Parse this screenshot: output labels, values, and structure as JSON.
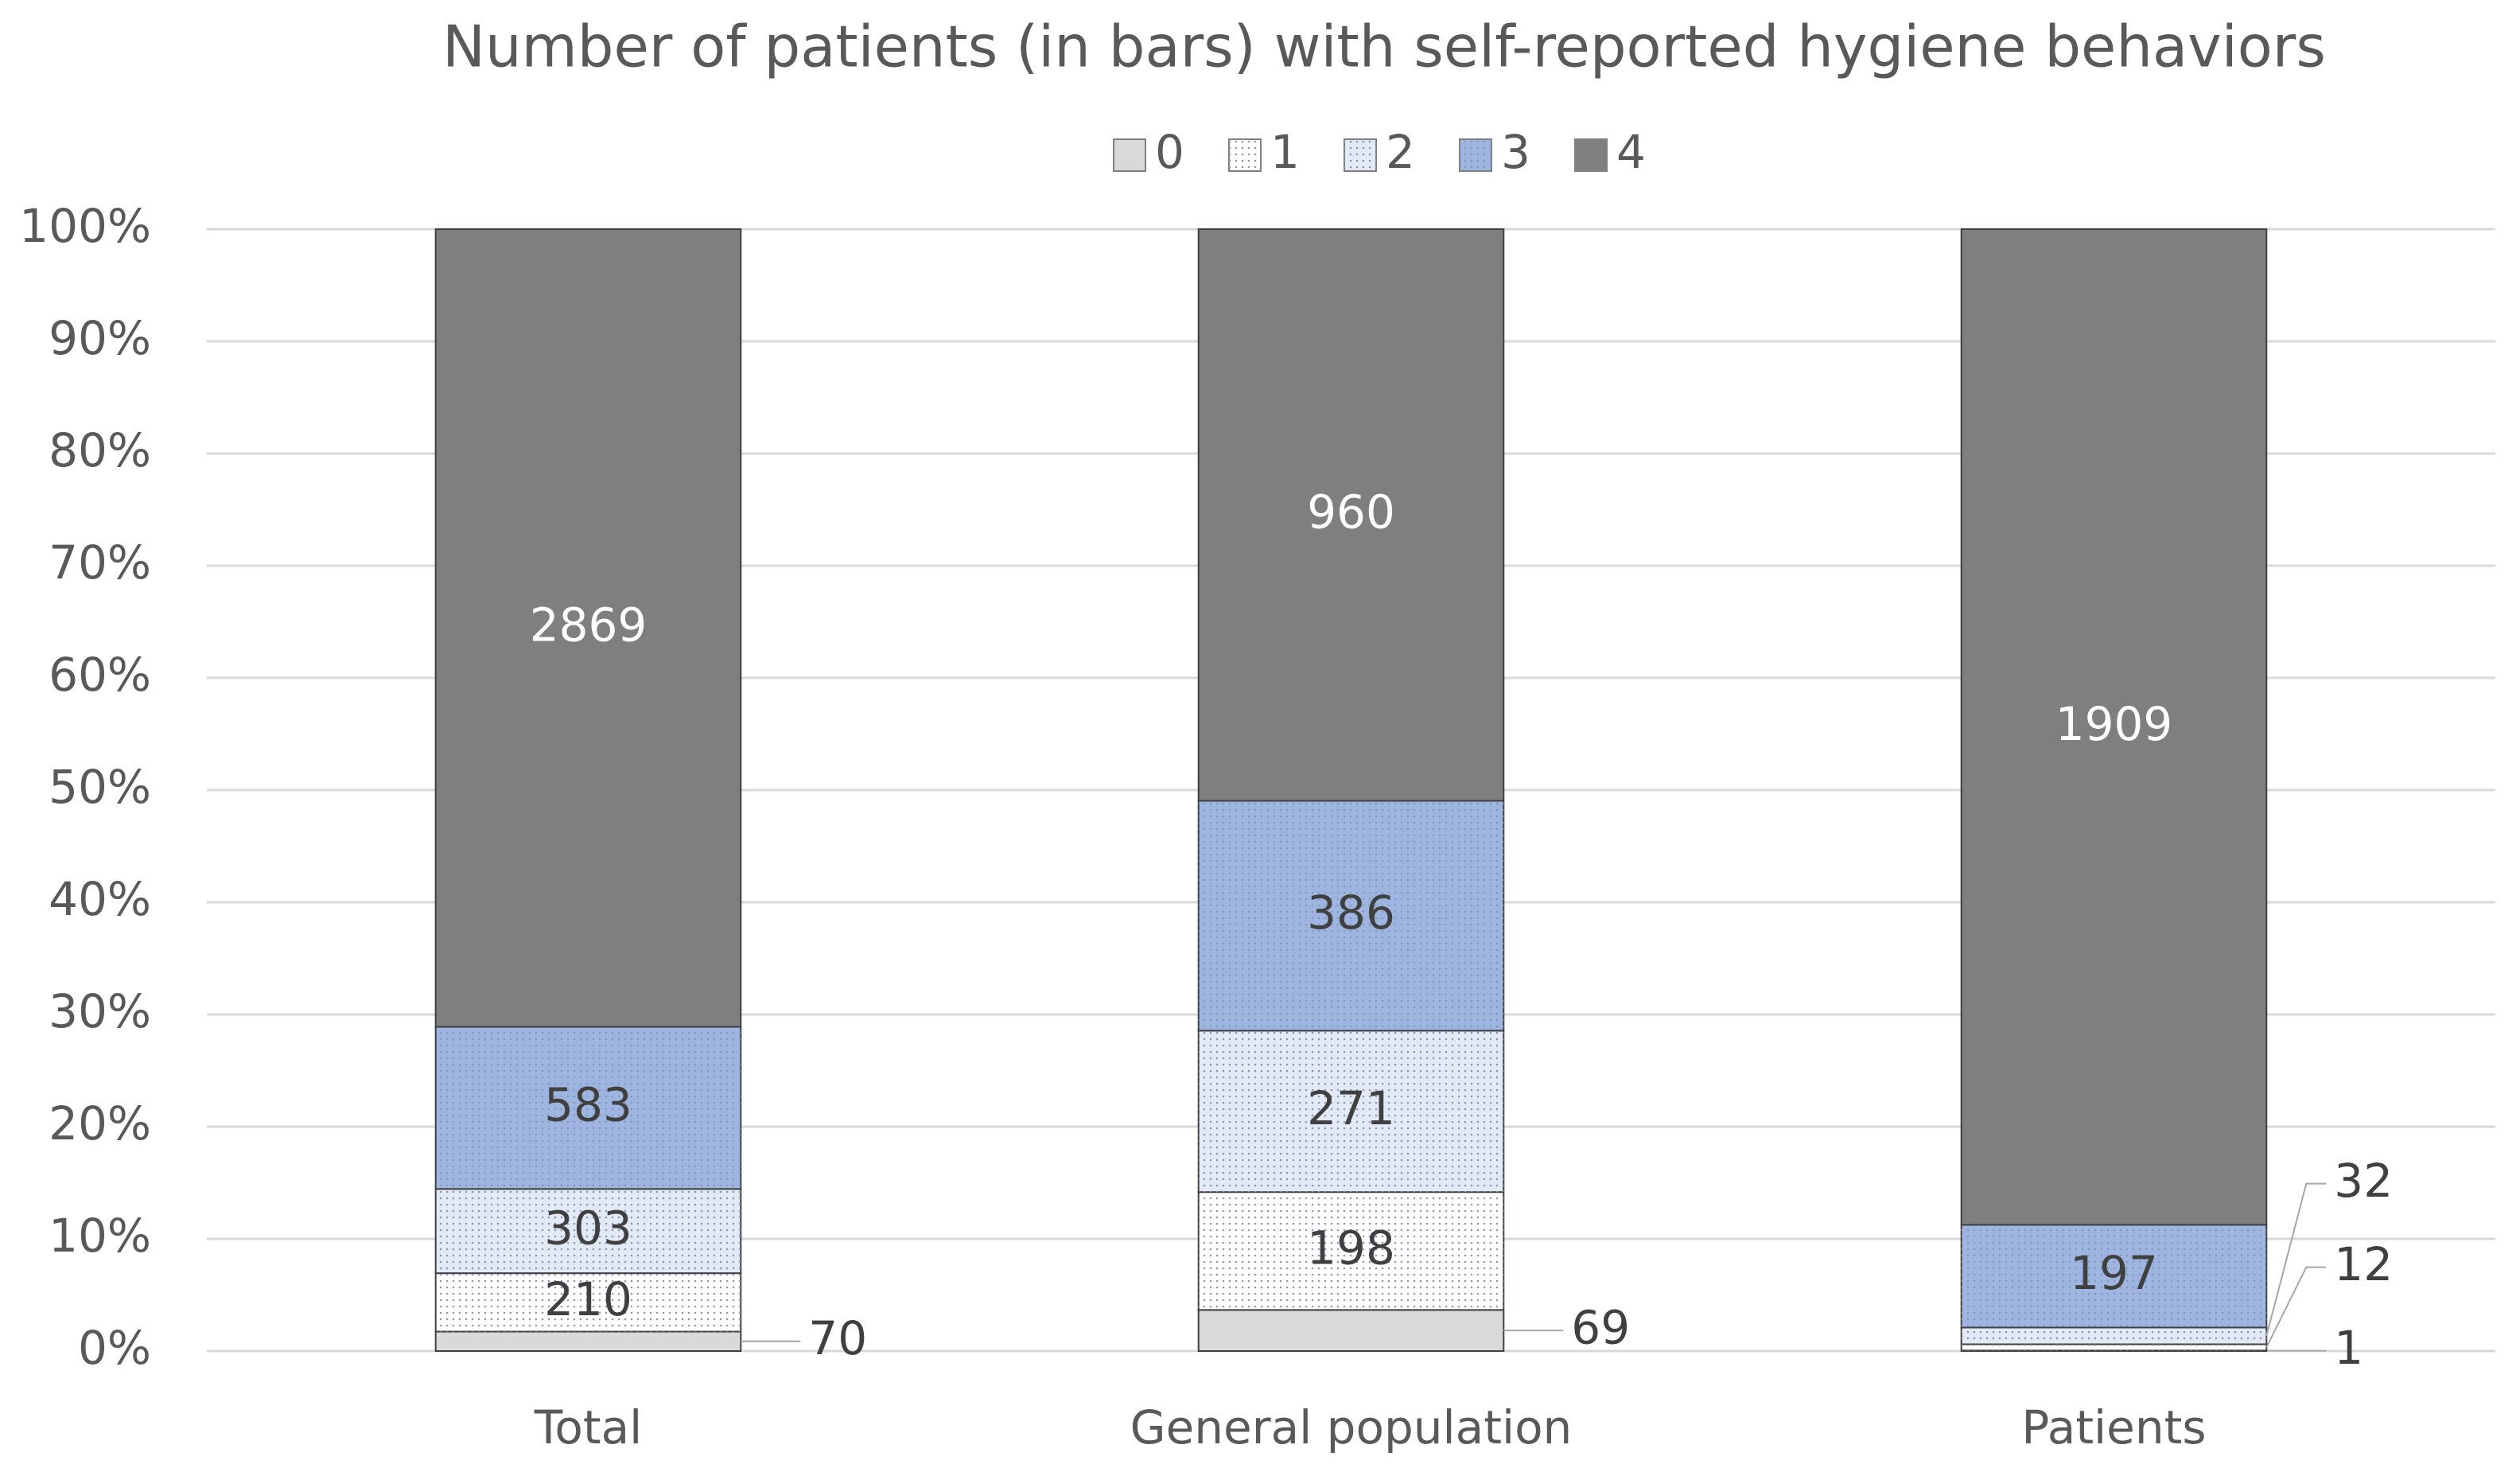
{
  "chart_data": {
    "type": "bar",
    "stacking": "percent",
    "title": "Number of patients (in bars) with self-reported hygiene behaviors",
    "categories": [
      "Total",
      "General population",
      "Patients"
    ],
    "series": [
      {
        "name": "0",
        "color": "#d9d9d9",
        "values": [
          70,
          69,
          1
        ]
      },
      {
        "name": "1",
        "color": "#ffffff",
        "values": [
          210,
          198,
          12
        ]
      },
      {
        "name": "2",
        "color": "#e3eaf6",
        "values": [
          303,
          271,
          32
        ]
      },
      {
        "name": "3",
        "color": "#9db5e0",
        "values": [
          583,
          386,
          197
        ]
      },
      {
        "name": "4",
        "color": "#7f7f7f",
        "values": [
          2869,
          960,
          1909
        ]
      }
    ],
    "ylim": [
      0,
      100
    ],
    "yticks": [
      {
        "value": 0,
        "label": "0%"
      },
      {
        "value": 10,
        "label": "10%"
      },
      {
        "value": 20,
        "label": "20%"
      },
      {
        "value": 30,
        "label": "30%"
      },
      {
        "value": 40,
        "label": "40%"
      },
      {
        "value": 50,
        "label": "50%"
      },
      {
        "value": 60,
        "label": "60%"
      },
      {
        "value": 70,
        "label": "70%"
      },
      {
        "value": 80,
        "label": "80%"
      },
      {
        "value": 90,
        "label": "90%"
      },
      {
        "value": 100,
        "label": "100%"
      }
    ],
    "grid": true,
    "legend": "top"
  }
}
